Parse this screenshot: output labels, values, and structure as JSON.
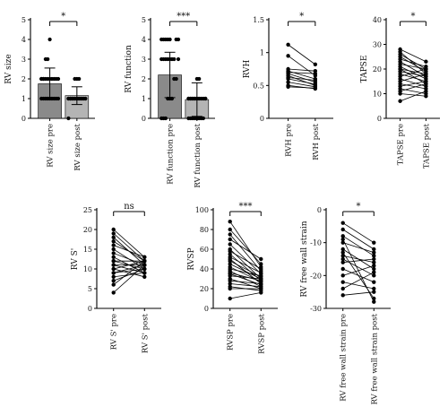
{
  "figure": {
    "background": "#ffffff",
    "colors": {
      "axis": "#000000",
      "bar_pre": "#8a8a8a",
      "bar_post": "#b4b4b4",
      "point": "#000000",
      "line": "#000000"
    }
  },
  "chart_data": [
    {
      "id": "rv-size",
      "type": "bar",
      "categories": [
        "RV size pre",
        "RV size post"
      ],
      "values": [
        1.75,
        1.15
      ],
      "errors": [
        0.8,
        0.45
      ],
      "points": [
        [
          1,
          1,
          1,
          1,
          1,
          1,
          1,
          1,
          1,
          2,
          2,
          2,
          2,
          2,
          2,
          2,
          2,
          2,
          2,
          2,
          3,
          3,
          4
        ],
        [
          0,
          1,
          1,
          1,
          1,
          1,
          1,
          1,
          1,
          1,
          1,
          1,
          1,
          1,
          1,
          1,
          1,
          1,
          1,
          1,
          1,
          2,
          2,
          2
        ]
      ],
      "ylabel": "RV size",
      "ylim": [
        0,
        5
      ],
      "yticks": [
        0,
        1,
        2,
        3,
        4,
        5
      ],
      "significance": "*"
    },
    {
      "id": "rv-function",
      "type": "bar",
      "categories": [
        "RV function pre",
        "RV function post"
      ],
      "values": [
        2.2,
        0.95
      ],
      "errors": [
        1.15,
        0.85
      ],
      "points": [
        [
          0,
          0,
          0,
          1,
          1,
          1,
          2,
          2,
          3,
          3,
          3,
          3,
          3,
          3,
          3,
          3,
          4,
          4,
          4,
          4,
          4,
          4,
          4
        ],
        [
          0,
          0,
          0,
          0,
          0,
          0,
          0,
          0,
          1,
          1,
          1,
          1,
          1,
          1,
          1,
          1,
          1,
          1,
          1,
          1,
          1,
          1,
          2,
          2
        ]
      ],
      "ylabel": "RV function",
      "ylim": [
        0,
        5
      ],
      "yticks": [
        0,
        1,
        2,
        3,
        4,
        5
      ],
      "significance": "***"
    },
    {
      "id": "rvh",
      "type": "line",
      "categories": [
        "RVH pre",
        "RVH post"
      ],
      "pairs": [
        [
          1.12,
          0.82
        ],
        [
          0.95,
          0.65
        ],
        [
          0.75,
          0.72
        ],
        [
          0.72,
          0.6
        ],
        [
          0.7,
          0.68
        ],
        [
          0.68,
          0.55
        ],
        [
          0.65,
          0.5
        ],
        [
          0.62,
          0.58
        ],
        [
          0.6,
          0.52
        ],
        [
          0.55,
          0.48
        ],
        [
          0.5,
          0.45
        ],
        [
          0.48,
          0.46
        ]
      ],
      "ylabel": "RVH",
      "ylim": [
        0.0,
        1.5
      ],
      "yticks": [
        0.0,
        0.5,
        1.0,
        1.5
      ],
      "significance": "*"
    },
    {
      "id": "tapse",
      "type": "line",
      "categories": [
        "TAPSE pre",
        "TAPSE post"
      ],
      "pairs": [
        [
          28,
          23
        ],
        [
          27,
          18
        ],
        [
          26,
          20
        ],
        [
          25,
          19
        ],
        [
          24,
          21
        ],
        [
          23,
          17
        ],
        [
          22,
          20
        ],
        [
          21,
          16
        ],
        [
          20,
          18
        ],
        [
          20,
          14
        ],
        [
          19,
          17
        ],
        [
          18,
          15
        ],
        [
          17,
          20
        ],
        [
          16,
          13
        ],
        [
          15,
          18
        ],
        [
          14,
          12
        ],
        [
          13,
          15
        ],
        [
          12,
          10
        ],
        [
          11,
          14
        ],
        [
          10,
          9
        ],
        [
          7,
          11
        ]
      ],
      "ylabel": "TAPSE",
      "ylim": [
        0,
        40
      ],
      "yticks": [
        0,
        10,
        20,
        30,
        40
      ],
      "significance": "*"
    },
    {
      "id": "rv-s",
      "type": "line",
      "categories": [
        "RV S' pre",
        "RV S' post"
      ],
      "pairs": [
        [
          20,
          13
        ],
        [
          19,
          12
        ],
        [
          18,
          11
        ],
        [
          17,
          12
        ],
        [
          16,
          13
        ],
        [
          15,
          10
        ],
        [
          14,
          11
        ],
        [
          13,
          9
        ],
        [
          12,
          12
        ],
        [
          12,
          10
        ],
        [
          11,
          11
        ],
        [
          11,
          9
        ],
        [
          10,
          12
        ],
        [
          10,
          8
        ],
        [
          9,
          10
        ],
        [
          9,
          11
        ],
        [
          8,
          9
        ],
        [
          7,
          10
        ],
        [
          6,
          12
        ],
        [
          4,
          11
        ]
      ],
      "ylabel": "RV S'",
      "ylim": [
        0,
        25
      ],
      "yticks": [
        0,
        5,
        10,
        15,
        20,
        25
      ],
      "significance": "ns"
    },
    {
      "id": "rvsp",
      "type": "line",
      "categories": [
        "RVSP pre",
        "RVSP post"
      ],
      "pairs": [
        [
          88,
          42
        ],
        [
          80,
          45
        ],
        [
          75,
          38
        ],
        [
          70,
          50
        ],
        [
          65,
          35
        ],
        [
          60,
          30
        ],
        [
          58,
          40
        ],
        [
          55,
          28
        ],
        [
          52,
          36
        ],
        [
          50,
          25
        ],
        [
          48,
          32
        ],
        [
          45,
          30
        ],
        [
          42,
          27
        ],
        [
          40,
          33
        ],
        [
          38,
          22
        ],
        [
          36,
          28
        ],
        [
          35,
          24
        ],
        [
          33,
          30
        ],
        [
          30,
          20
        ],
        [
          28,
          25
        ],
        [
          25,
          22
        ],
        [
          22,
          18
        ],
        [
          20,
          20
        ],
        [
          10,
          16
        ]
      ],
      "ylabel": "RVSP",
      "ylim": [
        0,
        100
      ],
      "yticks": [
        0,
        20,
        40,
        60,
        80,
        100
      ],
      "significance": "***"
    },
    {
      "id": "rv-free-wall-strain",
      "type": "line",
      "categories": [
        "RV free wall strain pre",
        "RV free wall strain post"
      ],
      "pairs": [
        [
          -4,
          -10
        ],
        [
          -6,
          -12
        ],
        [
          -8,
          -14
        ],
        [
          -10,
          -13
        ],
        [
          -12,
          -18
        ],
        [
          -14,
          -16
        ],
        [
          -15,
          -20
        ],
        [
          -16,
          -15
        ],
        [
          -18,
          -22
        ],
        [
          -20,
          -17
        ],
        [
          -22,
          -24
        ],
        [
          -24,
          -19
        ],
        [
          -26,
          -25
        ],
        [
          -13,
          -27
        ],
        [
          -9,
          -28
        ]
      ],
      "ylabel": "RV free wall strain",
      "ylim": [
        -30,
        0
      ],
      "yticks": [
        -30,
        -20,
        -10,
        0
      ],
      "significance": "*"
    }
  ]
}
